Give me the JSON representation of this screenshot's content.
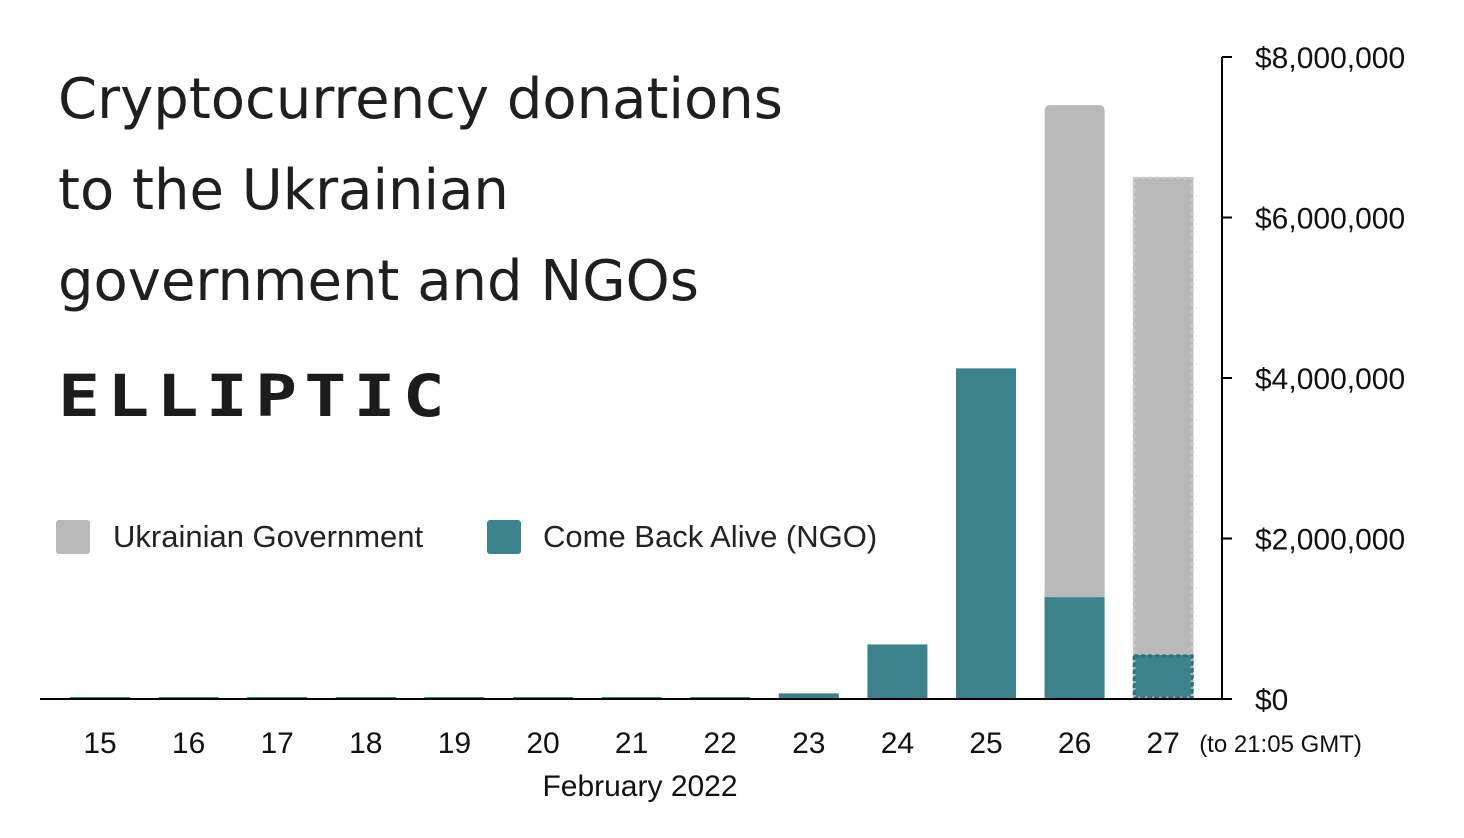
{
  "chart_data": {
    "type": "bar",
    "stacked": true,
    "title_lines": [
      "Cryptocurrency donations",
      "to the Ukrainian",
      "government and NGOs"
    ],
    "brand": "ELLIPTIC",
    "categories": [
      "15",
      "16",
      "17",
      "18",
      "19",
      "20",
      "21",
      "22",
      "23",
      "24",
      "25",
      "26",
      "27"
    ],
    "xlabel": "February 2022",
    "last_category_note": "(to 21:05 GMT)",
    "y_axis_position": "right",
    "ylim": [
      0,
      8000000
    ],
    "y_ticks": [
      0,
      2000000,
      4000000,
      6000000,
      8000000
    ],
    "y_tick_labels": [
      "$0",
      "$2,000,000",
      "$4,000,000",
      "$6,000,000",
      "$8,000,000"
    ],
    "series": [
      {
        "name": "Come Back Alive (NGO)",
        "color": "#3b828c",
        "values": [
          20000,
          20000,
          20000,
          20000,
          20000,
          20000,
          20000,
          20000,
          70000,
          680000,
          4120000,
          1270000,
          550000
        ]
      },
      {
        "name": "Ukrainian Government",
        "color": "#b9b9b9",
        "values": [
          0,
          0,
          0,
          0,
          0,
          0,
          0,
          0,
          0,
          0,
          0,
          6130000,
          5950000
        ]
      }
    ],
    "partial_last_category": true,
    "legend_position": "middle-left",
    "grid": false
  }
}
